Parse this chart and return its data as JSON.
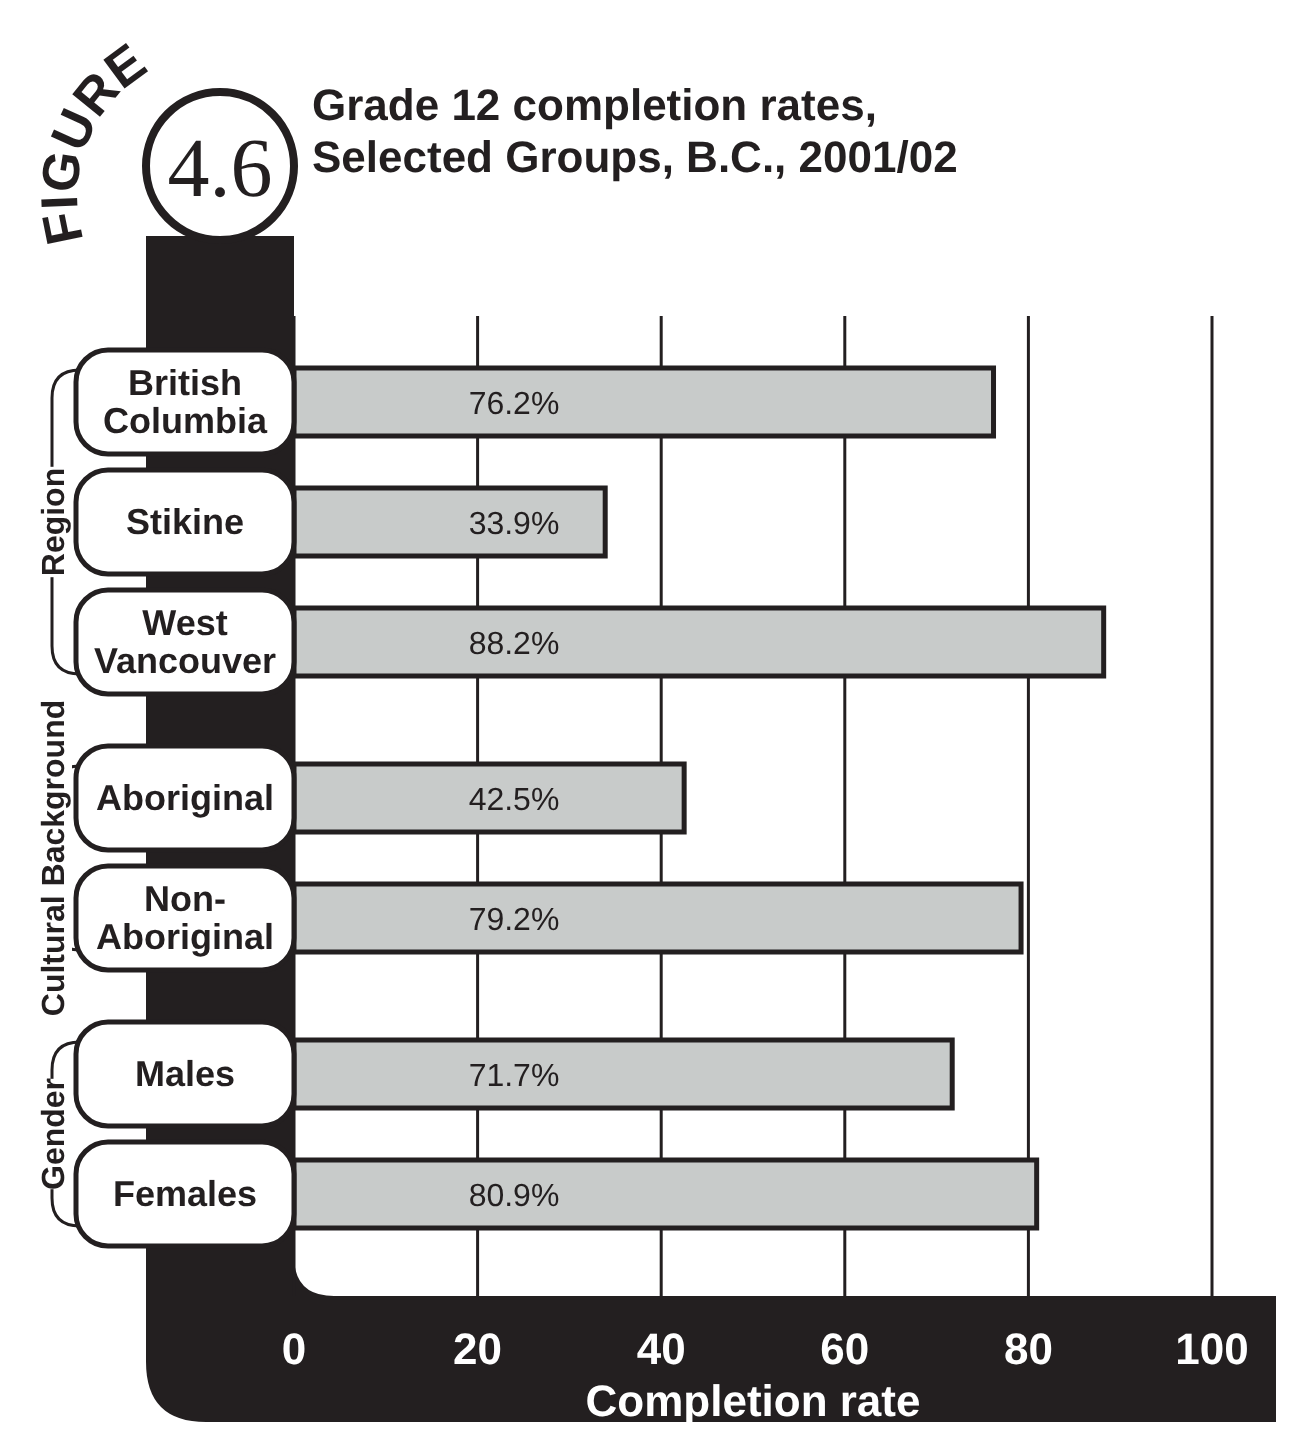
{
  "chart_data": {
    "type": "bar",
    "orientation": "horizontal",
    "title": "Grade 12 completion rates, Selected Groups, B.C., 2001/02",
    "xlabel": "Completion rate",
    "categories": [
      "British Columbia",
      "Stikine",
      "West Vancouver",
      "Aboriginal",
      "Non-Aboriginal",
      "Males",
      "Females"
    ],
    "values": [
      76.2,
      33.9,
      88.2,
      42.5,
      79.2,
      71.7,
      80.9
    ],
    "value_labels": [
      "76.2%",
      "33.9%",
      "88.2%",
      "42.5%",
      "79.2%",
      "71.7%",
      "80.9%"
    ],
    "color": "#c8cbca",
    "xlim": [
      0,
      100
    ],
    "xticks": [
      0,
      20,
      40,
      60,
      80,
      100
    ],
    "grid": "x",
    "annotations": [
      "FIGURE",
      "4.6",
      "Region",
      "Cultural Background",
      "Gender"
    ]
  }
}
